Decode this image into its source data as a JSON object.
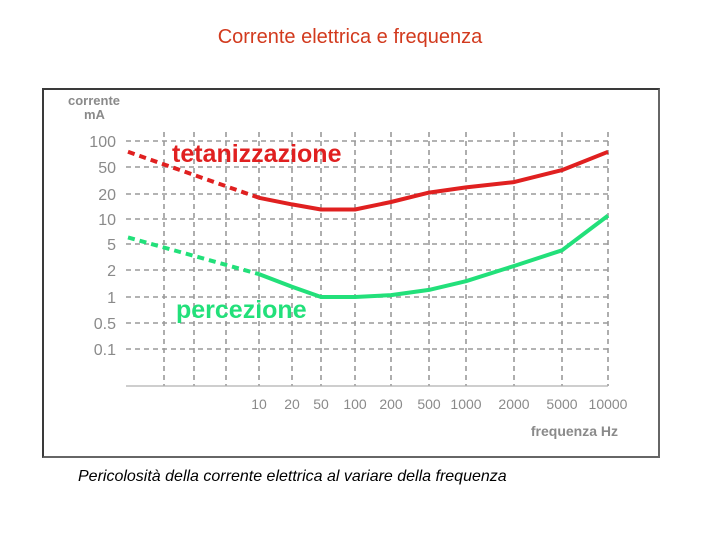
{
  "slide": {
    "title": "Corrente elettrica e frequenza",
    "caption": "Pericolosità della corrente elettrica al variare della frequenza"
  },
  "chart_data": {
    "type": "line",
    "ylabel_line1": "corrente",
    "ylabel_line2": "mA",
    "xlabel": "frequenza Hz",
    "x_ticks": [
      "10",
      "20",
      "50",
      "100",
      "200",
      "500",
      "1000",
      "2000",
      "5000",
      "10000"
    ],
    "y_ticks": [
      "100",
      "50",
      "20",
      "10",
      "5",
      "2",
      "1",
      "0.5",
      "0.1"
    ],
    "grid": true,
    "colors": {
      "tetanizzazione": "#e02020",
      "percezione": "#22e07a",
      "grid": "#9a9a9a",
      "frame": "#3a3a3a"
    },
    "series": [
      {
        "name": "tetanizzazione",
        "color": "#e02020",
        "dashed_segment": {
          "x": [
            0,
            10
          ],
          "y": [
            75,
            18
          ]
        },
        "points": [
          [
            10,
            18
          ],
          [
            20,
            15
          ],
          [
            50,
            13
          ],
          [
            100,
            13
          ],
          [
            200,
            16
          ],
          [
            500,
            21
          ],
          [
            1000,
            25
          ],
          [
            2000,
            30
          ],
          [
            5000,
            45
          ],
          [
            10000,
            75
          ]
        ]
      },
      {
        "name": "percezione",
        "color": "#22e07a",
        "dashed_segment": {
          "x": [
            0,
            10
          ],
          "y": [
            6,
            1.8
          ]
        },
        "points": [
          [
            10,
            1.8
          ],
          [
            20,
            1.3
          ],
          [
            50,
            1.0
          ],
          [
            100,
            1.0
          ],
          [
            200,
            1.05
          ],
          [
            500,
            1.2
          ],
          [
            1000,
            1.5
          ],
          [
            2000,
            2.3
          ],
          [
            5000,
            4.0
          ],
          [
            10000,
            11
          ]
        ]
      }
    ]
  }
}
